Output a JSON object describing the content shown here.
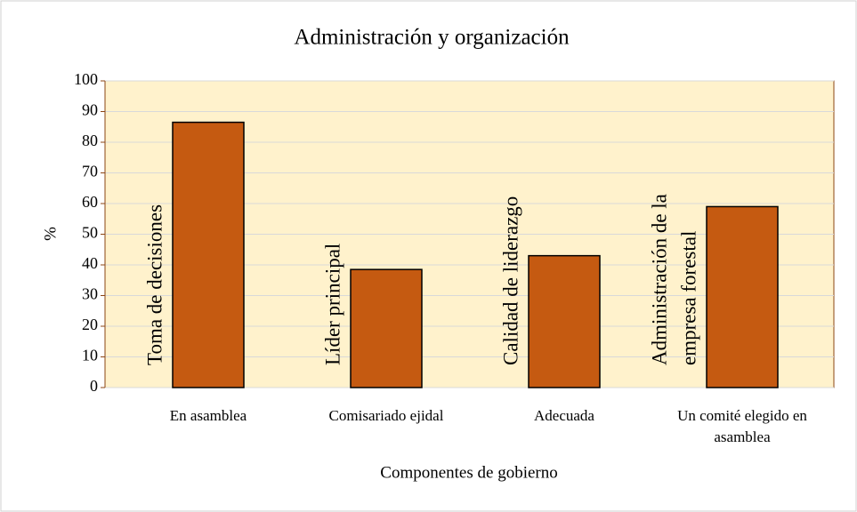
{
  "chart_data": {
    "type": "bar",
    "title": "Administración y organización",
    "x_label": "Componentes de gobierno",
    "y_label": "%",
    "categories": [
      "En asamblea",
      "Comisariado ejidal",
      "Adecuada",
      "Un comité elegido en asamblea"
    ],
    "values": [
      86.5,
      38.5,
      43,
      59
    ],
    "color": "#c55a11",
    "annotations": [
      [
        "Toma de decisiones"
      ],
      [
        "Líder principal"
      ],
      [
        "Calidad de liderazgo"
      ],
      [
        "Administración de la",
        "empresa forestal"
      ]
    ],
    "ylim": [
      0,
      100
    ],
    "yticks": [
      0,
      10,
      20,
      30,
      40,
      50,
      60,
      70,
      80,
      90,
      100
    ],
    "grid": true
  }
}
